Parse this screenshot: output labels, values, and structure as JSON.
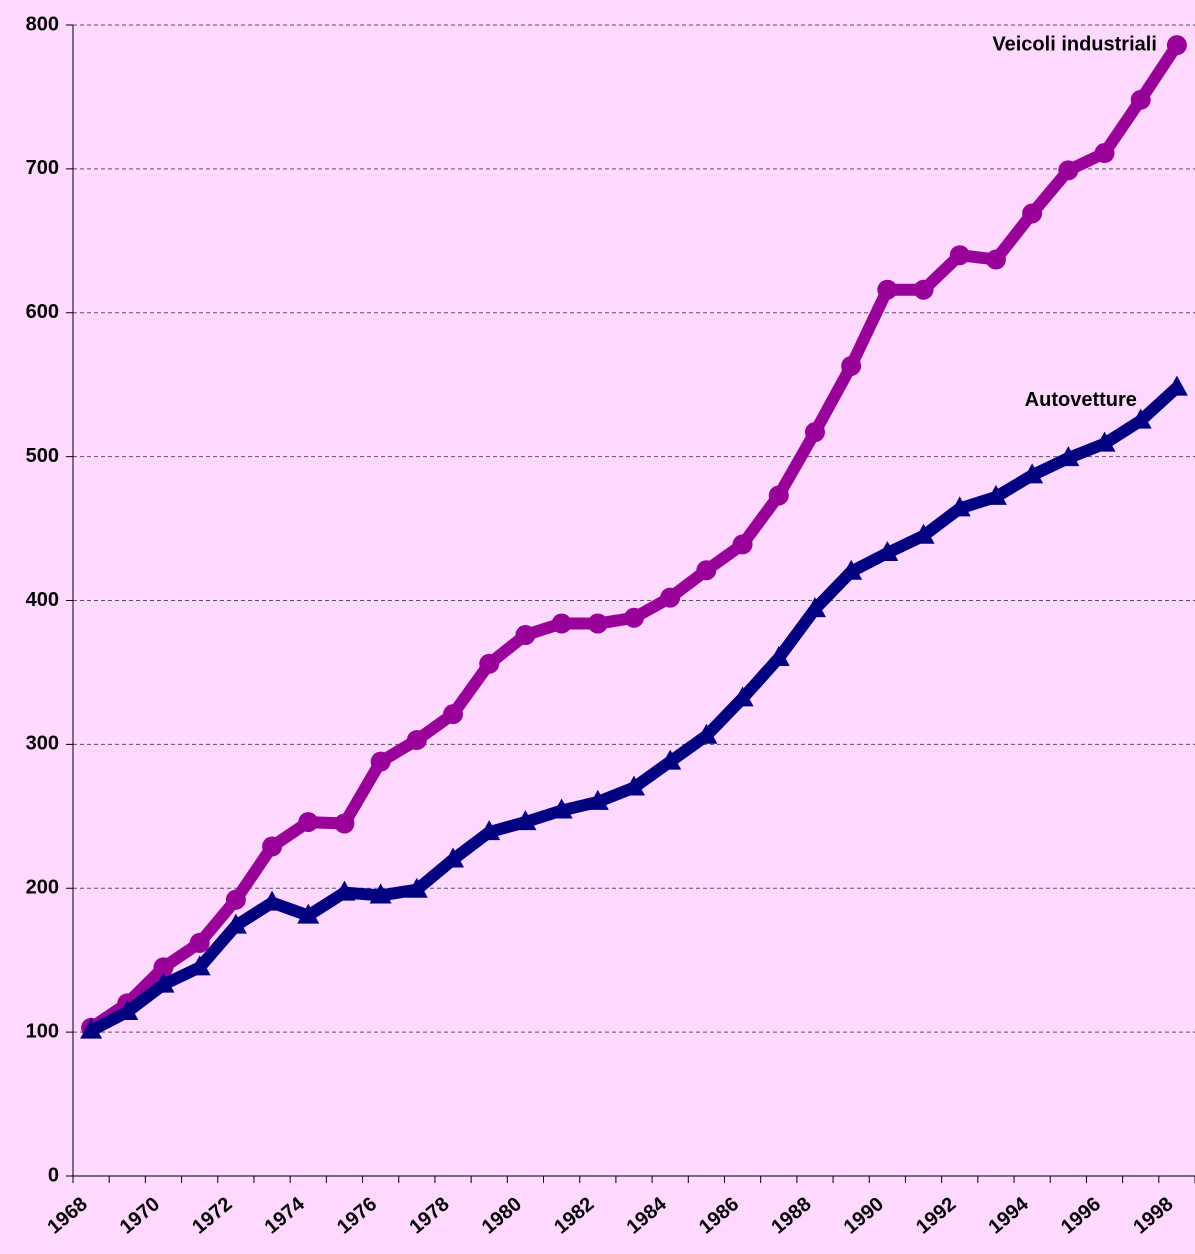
{
  "chart_data": {
    "type": "line",
    "categories": [
      "1968",
      null,
      "1970",
      null,
      "1972",
      null,
      "1974",
      null,
      "1976",
      null,
      "1978",
      null,
      "1980",
      null,
      "1982",
      null,
      "1984",
      null,
      "1986",
      null,
      "1988",
      null,
      "1990",
      null,
      "1992",
      null,
      "1994",
      null,
      "1996",
      null,
      "1998"
    ],
    "series": [
      {
        "name": "Veicoli industriali",
        "color": "#990099",
        "marker": "circle",
        "values": [
          103,
          120,
          145,
          162,
          192,
          229,
          246,
          245,
          288,
          303,
          321,
          356,
          376,
          384,
          384,
          388,
          402,
          421,
          439,
          473,
          517,
          563,
          616,
          616,
          640,
          637,
          669,
          699,
          711,
          748,
          786
        ]
      },
      {
        "name": "Autovetture",
        "color": "#000080",
        "marker": "triangle",
        "values": [
          101,
          114,
          133,
          145,
          174,
          190,
          181,
          197,
          195,
          199,
          220,
          239,
          246,
          254,
          260,
          270,
          288,
          306,
          332,
          360,
          394,
          420,
          433,
          445,
          464,
          472,
          487,
          499,
          509,
          525,
          548
        ]
      }
    ],
    "ylim": [
      0,
      800
    ],
    "yticks": [
      0,
      100,
      200,
      300,
      400,
      500,
      600,
      700,
      800
    ],
    "grid": true
  }
}
